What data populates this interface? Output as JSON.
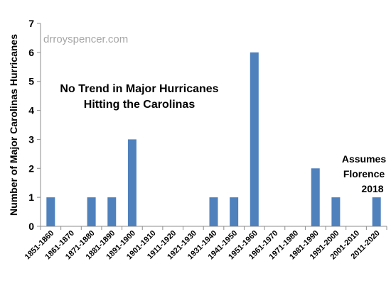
{
  "chart_data": {
    "type": "bar",
    "title": [
      "No Trend in Major Hurricanes",
      "Hitting the Carolinas"
    ],
    "watermark": "drroyspencer.com",
    "ylabel": "Number of Major Carolinas Hurricanes",
    "xlabel": "",
    "ylim": [
      0,
      7
    ],
    "yticks": [
      "0",
      "1",
      "2",
      "3",
      "4",
      "5",
      "6",
      "7"
    ],
    "categories": [
      "1851-1860",
      "1861-1870",
      "1871-1880",
      "1881-1890",
      "1891-1900",
      "1901-1910",
      "1911-1920",
      "1921-1930",
      "1931-1940",
      "1941-1950",
      "1951-1960",
      "1961-1970",
      "1971-1980",
      "1981-1990",
      "1991-2000",
      "2001-2010",
      "2011-2020"
    ],
    "values": [
      1,
      0,
      1,
      1,
      3,
      0,
      0,
      0,
      1,
      1,
      6,
      0,
      0,
      2,
      1,
      0,
      1
    ],
    "annotation": [
      "Assumes",
      "Florence",
      "2018"
    ],
    "bar_color": "#4f81bd",
    "grid": false
  }
}
